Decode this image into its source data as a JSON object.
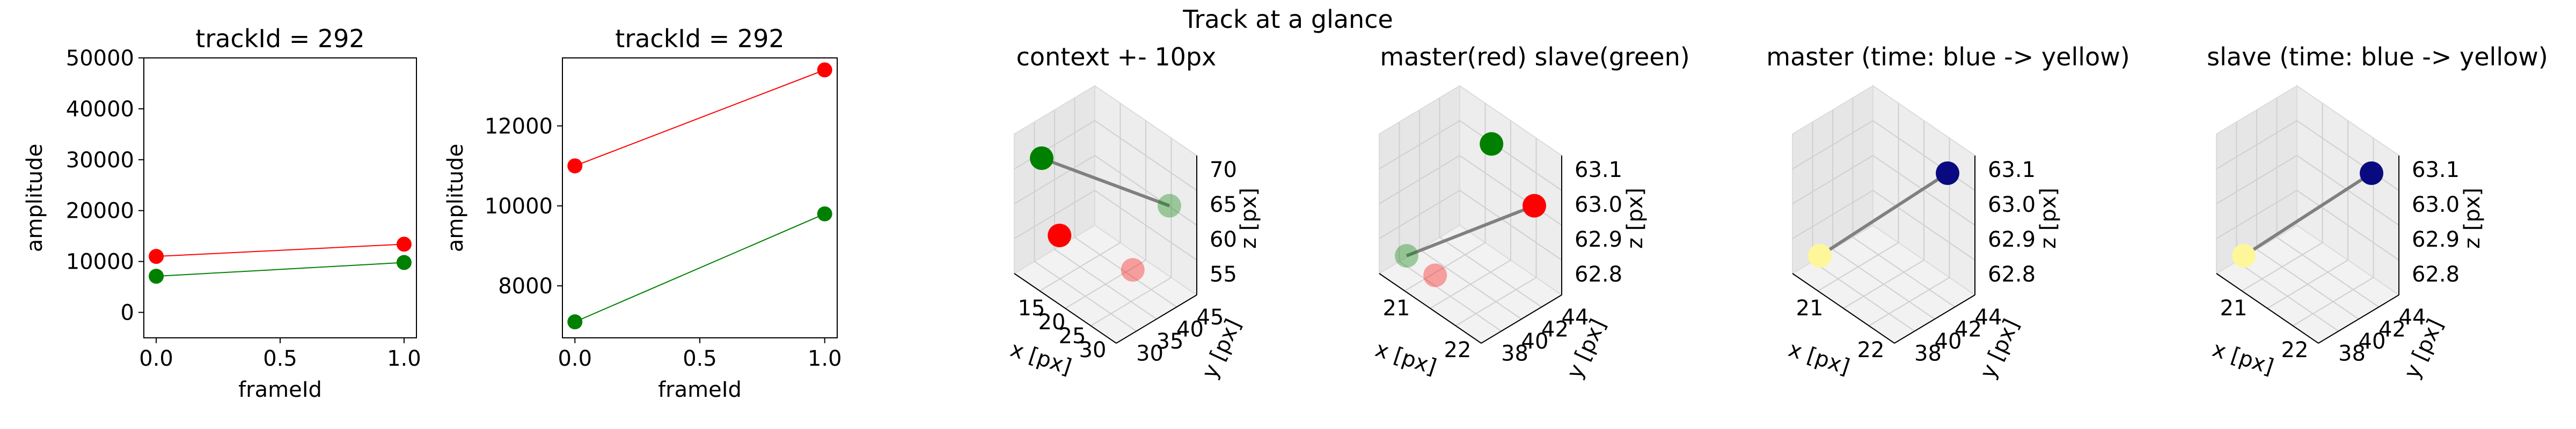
{
  "figure": {
    "suptitle": "Track at a glance"
  },
  "chart_data": [
    {
      "type": "line",
      "title": "trackId = 292",
      "xlabel": "frameId",
      "ylabel": "amplitude",
      "xlim": [
        -0.05,
        1.05
      ],
      "ylim": [
        -5000,
        50000
      ],
      "xticks": [
        0.0,
        0.5,
        1.0
      ],
      "xtick_labels": [
        "0.0",
        "0.5",
        "1.0"
      ],
      "yticks": [
        0,
        10000,
        20000,
        30000,
        40000,
        50000
      ],
      "ytick_labels": [
        "0",
        "10000",
        "20000",
        "30000",
        "40000",
        "50000"
      ],
      "grid": false,
      "series": [
        {
          "color": "#ff0000",
          "x": [
            0,
            1
          ],
          "y": [
            11000,
            13400
          ]
        },
        {
          "color": "#008000",
          "x": [
            0,
            1
          ],
          "y": [
            7100,
            9800
          ]
        }
      ]
    },
    {
      "type": "line",
      "title": "trackId = 292",
      "xlabel": "frameId",
      "ylabel": "amplitude",
      "xlim": [
        -0.05,
        1.05
      ],
      "ylim": [
        6700,
        13700
      ],
      "xticks": [
        0.0,
        0.5,
        1.0
      ],
      "xtick_labels": [
        "0.0",
        "0.5",
        "1.0"
      ],
      "yticks": [
        8000,
        10000,
        12000
      ],
      "ytick_labels": [
        "8000",
        "10000",
        "12000"
      ],
      "grid": false,
      "series": [
        {
          "color": "#ff0000",
          "x": [
            0,
            1
          ],
          "y": [
            11000,
            13400
          ]
        },
        {
          "color": "#008000",
          "x": [
            0,
            1
          ],
          "y": [
            7100,
            9800
          ]
        }
      ]
    },
    {
      "type": "scatter",
      "title": "context +- 10px",
      "xlabel": "x [px]",
      "ylabel": "y [px]",
      "zlabel": "z [px]",
      "xticks": [
        "15",
        "20",
        "25",
        "30"
      ],
      "yticks": [
        "30",
        "35",
        "40",
        "45"
      ],
      "zticks": [
        "55",
        "60",
        "65",
        "70"
      ],
      "points": [
        {
          "color": "#008000",
          "alpha": 1.0,
          "x": 21,
          "y": 38,
          "z": 63.1
        },
        {
          "color": "#ff0000",
          "alpha": 1.0,
          "x": 22,
          "y": 38,
          "z": 62.9
        },
        {
          "color": "#ff0000",
          "alpha": 0.35,
          "x": 24,
          "y": 40,
          "z": 62.8
        },
        {
          "color": "#008000",
          "alpha": 0.35,
          "x": 25,
          "y": 41,
          "z": 63.0
        }
      ]
    },
    {
      "type": "scatter",
      "title": "master(red) slave(green)",
      "xlabel": "x [px]",
      "ylabel": "y [px]",
      "zlabel": "z [px]",
      "xticks": [
        "21",
        "22"
      ],
      "yticks": [
        "38",
        "40",
        "42",
        "44"
      ],
      "zticks": [
        "62.8",
        "62.9",
        "63.0",
        "63.1"
      ],
      "points": [
        {
          "color": "#008000",
          "alpha": 0.35,
          "x": 20.6,
          "y": 38,
          "z": 62.8
        },
        {
          "color": "#ff0000",
          "alpha": 0.35,
          "x": 21.0,
          "y": 38,
          "z": 62.8
        },
        {
          "color": "#008000",
          "alpha": 1.0,
          "x": 21.0,
          "y": 44,
          "z": 63.1
        },
        {
          "color": "#ff0000",
          "alpha": 1.0,
          "x": 21.6,
          "y": 44,
          "z": 63.0
        }
      ]
    },
    {
      "type": "scatter",
      "title": "master (time: blue -> yellow)",
      "xlabel": "x [px]",
      "ylabel": "y [px]",
      "zlabel": "z [px]",
      "xticks": [
        "21",
        "22"
      ],
      "yticks": [
        "38",
        "40",
        "42",
        "44"
      ],
      "zticks": [
        "62.8",
        "62.9",
        "63.0",
        "63.1"
      ],
      "points": [
        {
          "color": "#fdf79a",
          "alpha": 1.0,
          "x": 20.8,
          "y": 38,
          "z": 62.8
        },
        {
          "color": "#0a0a80",
          "alpha": 1.0,
          "x": 21.6,
          "y": 44,
          "z": 63.05
        }
      ]
    },
    {
      "type": "scatter",
      "title": "slave (time: blue -> yellow)",
      "xlabel": "x [px]",
      "ylabel": "y [px]",
      "zlabel": "z [px]",
      "xticks": [
        "21",
        "22"
      ],
      "yticks": [
        "38",
        "40",
        "42",
        "44"
      ],
      "zticks": [
        "62.8",
        "62.9",
        "63.0",
        "63.1"
      ],
      "points": [
        {
          "color": "#fdf79a",
          "alpha": 1.0,
          "x": 20.6,
          "y": 38,
          "z": 62.8
        },
        {
          "color": "#0a0a80",
          "alpha": 1.0,
          "x": 21.7,
          "y": 44,
          "z": 63.1
        }
      ]
    }
  ]
}
